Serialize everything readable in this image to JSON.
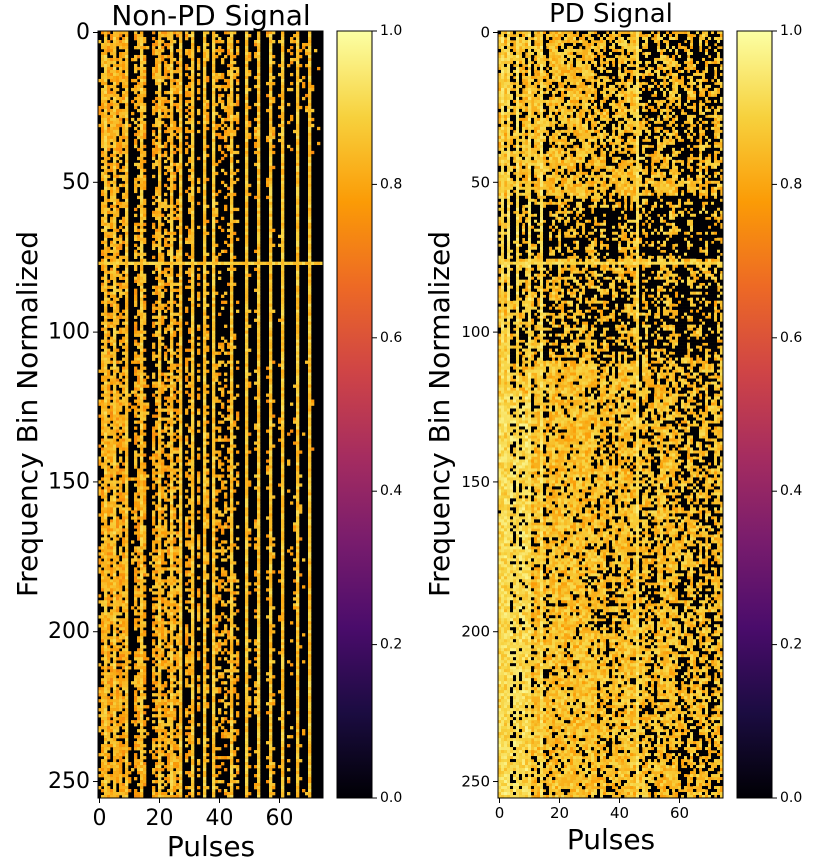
{
  "figure": {
    "colormap": "inferno",
    "colormap_stops": [
      "#000004",
      "#1b0c41",
      "#4a0c6b",
      "#781c6d",
      "#a52c60",
      "#cf4446",
      "#ed6925",
      "#fb9b06",
      "#f7d13d",
      "#fcffa4"
    ]
  },
  "chart_data": [
    {
      "type": "heatmap",
      "title": "Non-PD Signal",
      "xlabel": "Pulses",
      "ylabel": "Frequency Bin Normalized",
      "x_range": [
        0,
        75
      ],
      "y_range": [
        0,
        256
      ],
      "y_inverted": true,
      "x_ticks": [
        "0",
        "20",
        "40",
        "60"
      ],
      "y_ticks": [
        "0",
        "50",
        "100",
        "150",
        "200",
        "250"
      ],
      "colorbar": {
        "range": [
          0.0,
          1.0
        ],
        "ticks": [
          "0.0",
          "0.2",
          "0.4",
          "0.6",
          "0.8",
          "1.0"
        ]
      },
      "pattern": "values near 0.8 in scattered vertical streaks on a mostly black (0.0) background; densest orange at low pulse indices and a horizontal band near bin 77",
      "bright_rows": [
        77
      ],
      "bright_columns": [
        2,
        5,
        9,
        14,
        20,
        24,
        27,
        31,
        35,
        38,
        44,
        49,
        53,
        57,
        61,
        66,
        70
      ]
    },
    {
      "type": "heatmap",
      "title": "PD Signal",
      "xlabel": "Pulses",
      "ylabel": "Frequency Bin Normalized",
      "x_range": [
        0,
        75
      ],
      "y_range": [
        0,
        256
      ],
      "y_inverted": true,
      "x_ticks": [
        "0",
        "20",
        "40",
        "60"
      ],
      "y_ticks": [
        "0",
        "50",
        "100",
        "150",
        "200",
        "250"
      ],
      "colorbar": {
        "range": [
          0.0,
          1.0
        ],
        "ticks": [
          "0.0",
          "0.2",
          "0.4",
          "0.6",
          "0.8",
          "1.0"
        ]
      },
      "pattern": "mostly orange/yellow (0.8-0.95) values with black speckle concentrated between bins 50 and 100; bright horizontal band near bin 77 and bright columns at low pulse indices",
      "bright_rows": [
        77
      ],
      "bright_columns": [
        1,
        3,
        6,
        10,
        14,
        46
      ]
    }
  ]
}
